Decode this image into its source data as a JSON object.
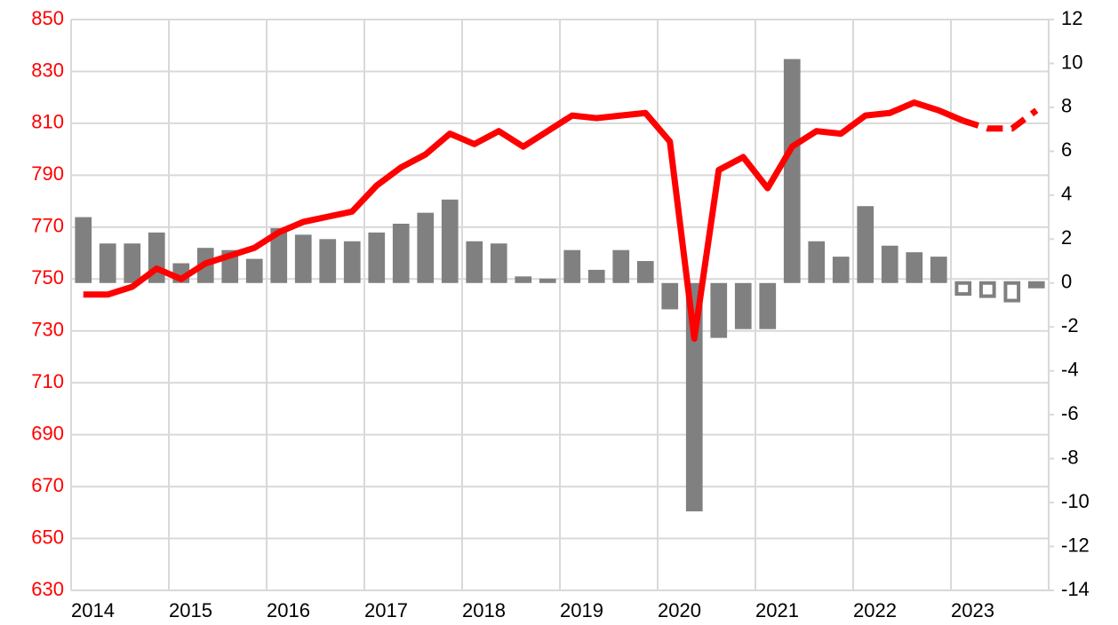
{
  "chart_data": {
    "type": "bar",
    "categories": [
      "2014",
      null,
      null,
      null,
      "2015",
      null,
      null,
      null,
      "2016",
      null,
      null,
      null,
      "2017",
      null,
      null,
      null,
      "2018",
      null,
      null,
      null,
      "2019",
      null,
      null,
      null,
      "2020",
      null,
      null,
      null,
      "2021",
      null,
      null,
      null,
      "2022",
      null,
      null,
      null,
      "2023",
      null,
      null,
      null
    ],
    "series": [
      {
        "type": "bar",
        "axis": "y2",
        "style": "solid",
        "color": "#808080",
        "values": [
          3.0,
          1.8,
          1.8,
          2.3,
          0.9,
          1.6,
          1.5,
          1.1,
          2.5,
          2.2,
          2.0,
          1.9,
          2.3,
          2.7,
          3.2,
          3.8,
          1.9,
          1.8,
          0.3,
          0.2,
          1.5,
          0.6,
          1.5,
          1.0,
          -1.2,
          -10.4,
          -2.5,
          -2.1,
          -2.1,
          10.2,
          1.9,
          1.2,
          3.5,
          1.7,
          1.4,
          1.2,
          null,
          null,
          null,
          null
        ]
      },
      {
        "type": "bar",
        "axis": "y2",
        "style": "hollow",
        "color": "#808080",
        "values": [
          null,
          null,
          null,
          null,
          null,
          null,
          null,
          null,
          null,
          null,
          null,
          null,
          null,
          null,
          null,
          null,
          null,
          null,
          null,
          null,
          null,
          null,
          null,
          null,
          null,
          null,
          null,
          null,
          null,
          null,
          null,
          null,
          null,
          null,
          null,
          null,
          -0.5,
          -0.6,
          -0.8,
          -0.1
        ]
      },
      {
        "type": "line",
        "axis": "y",
        "style": "solid",
        "color": "#ff0000",
        "values": [
          744,
          744,
          747,
          754,
          750,
          756,
          759,
          762,
          768,
          772,
          774,
          776,
          786,
          793,
          798,
          806,
          802,
          807,
          801,
          807,
          813,
          812,
          813,
          814,
          803,
          727,
          792,
          797,
          785,
          801,
          807,
          806,
          813,
          814,
          818,
          815,
          811,
          null,
          null,
          null
        ]
      },
      {
        "type": "line",
        "axis": "y",
        "style": "dashed",
        "color": "#ff0000",
        "values": [
          null,
          null,
          null,
          null,
          null,
          null,
          null,
          null,
          null,
          null,
          null,
          null,
          null,
          null,
          null,
          null,
          null,
          null,
          null,
          null,
          null,
          null,
          null,
          null,
          null,
          null,
          null,
          null,
          null,
          null,
          null,
          null,
          null,
          null,
          null,
          null,
          811,
          808,
          808,
          815
        ]
      }
    ],
    "ylim": [
      630,
      850
    ],
    "yticks": [
      630,
      650,
      670,
      690,
      710,
      730,
      750,
      770,
      790,
      810,
      830,
      850
    ],
    "ytick_color": "#ff0000",
    "y2lim": [
      -14,
      12
    ],
    "y2ticks": [
      -14,
      -12,
      -10,
      -8,
      -6,
      -4,
      -2,
      0,
      2,
      4,
      6,
      8,
      10,
      12
    ],
    "y2tick_color": "#000000",
    "grid": true
  }
}
